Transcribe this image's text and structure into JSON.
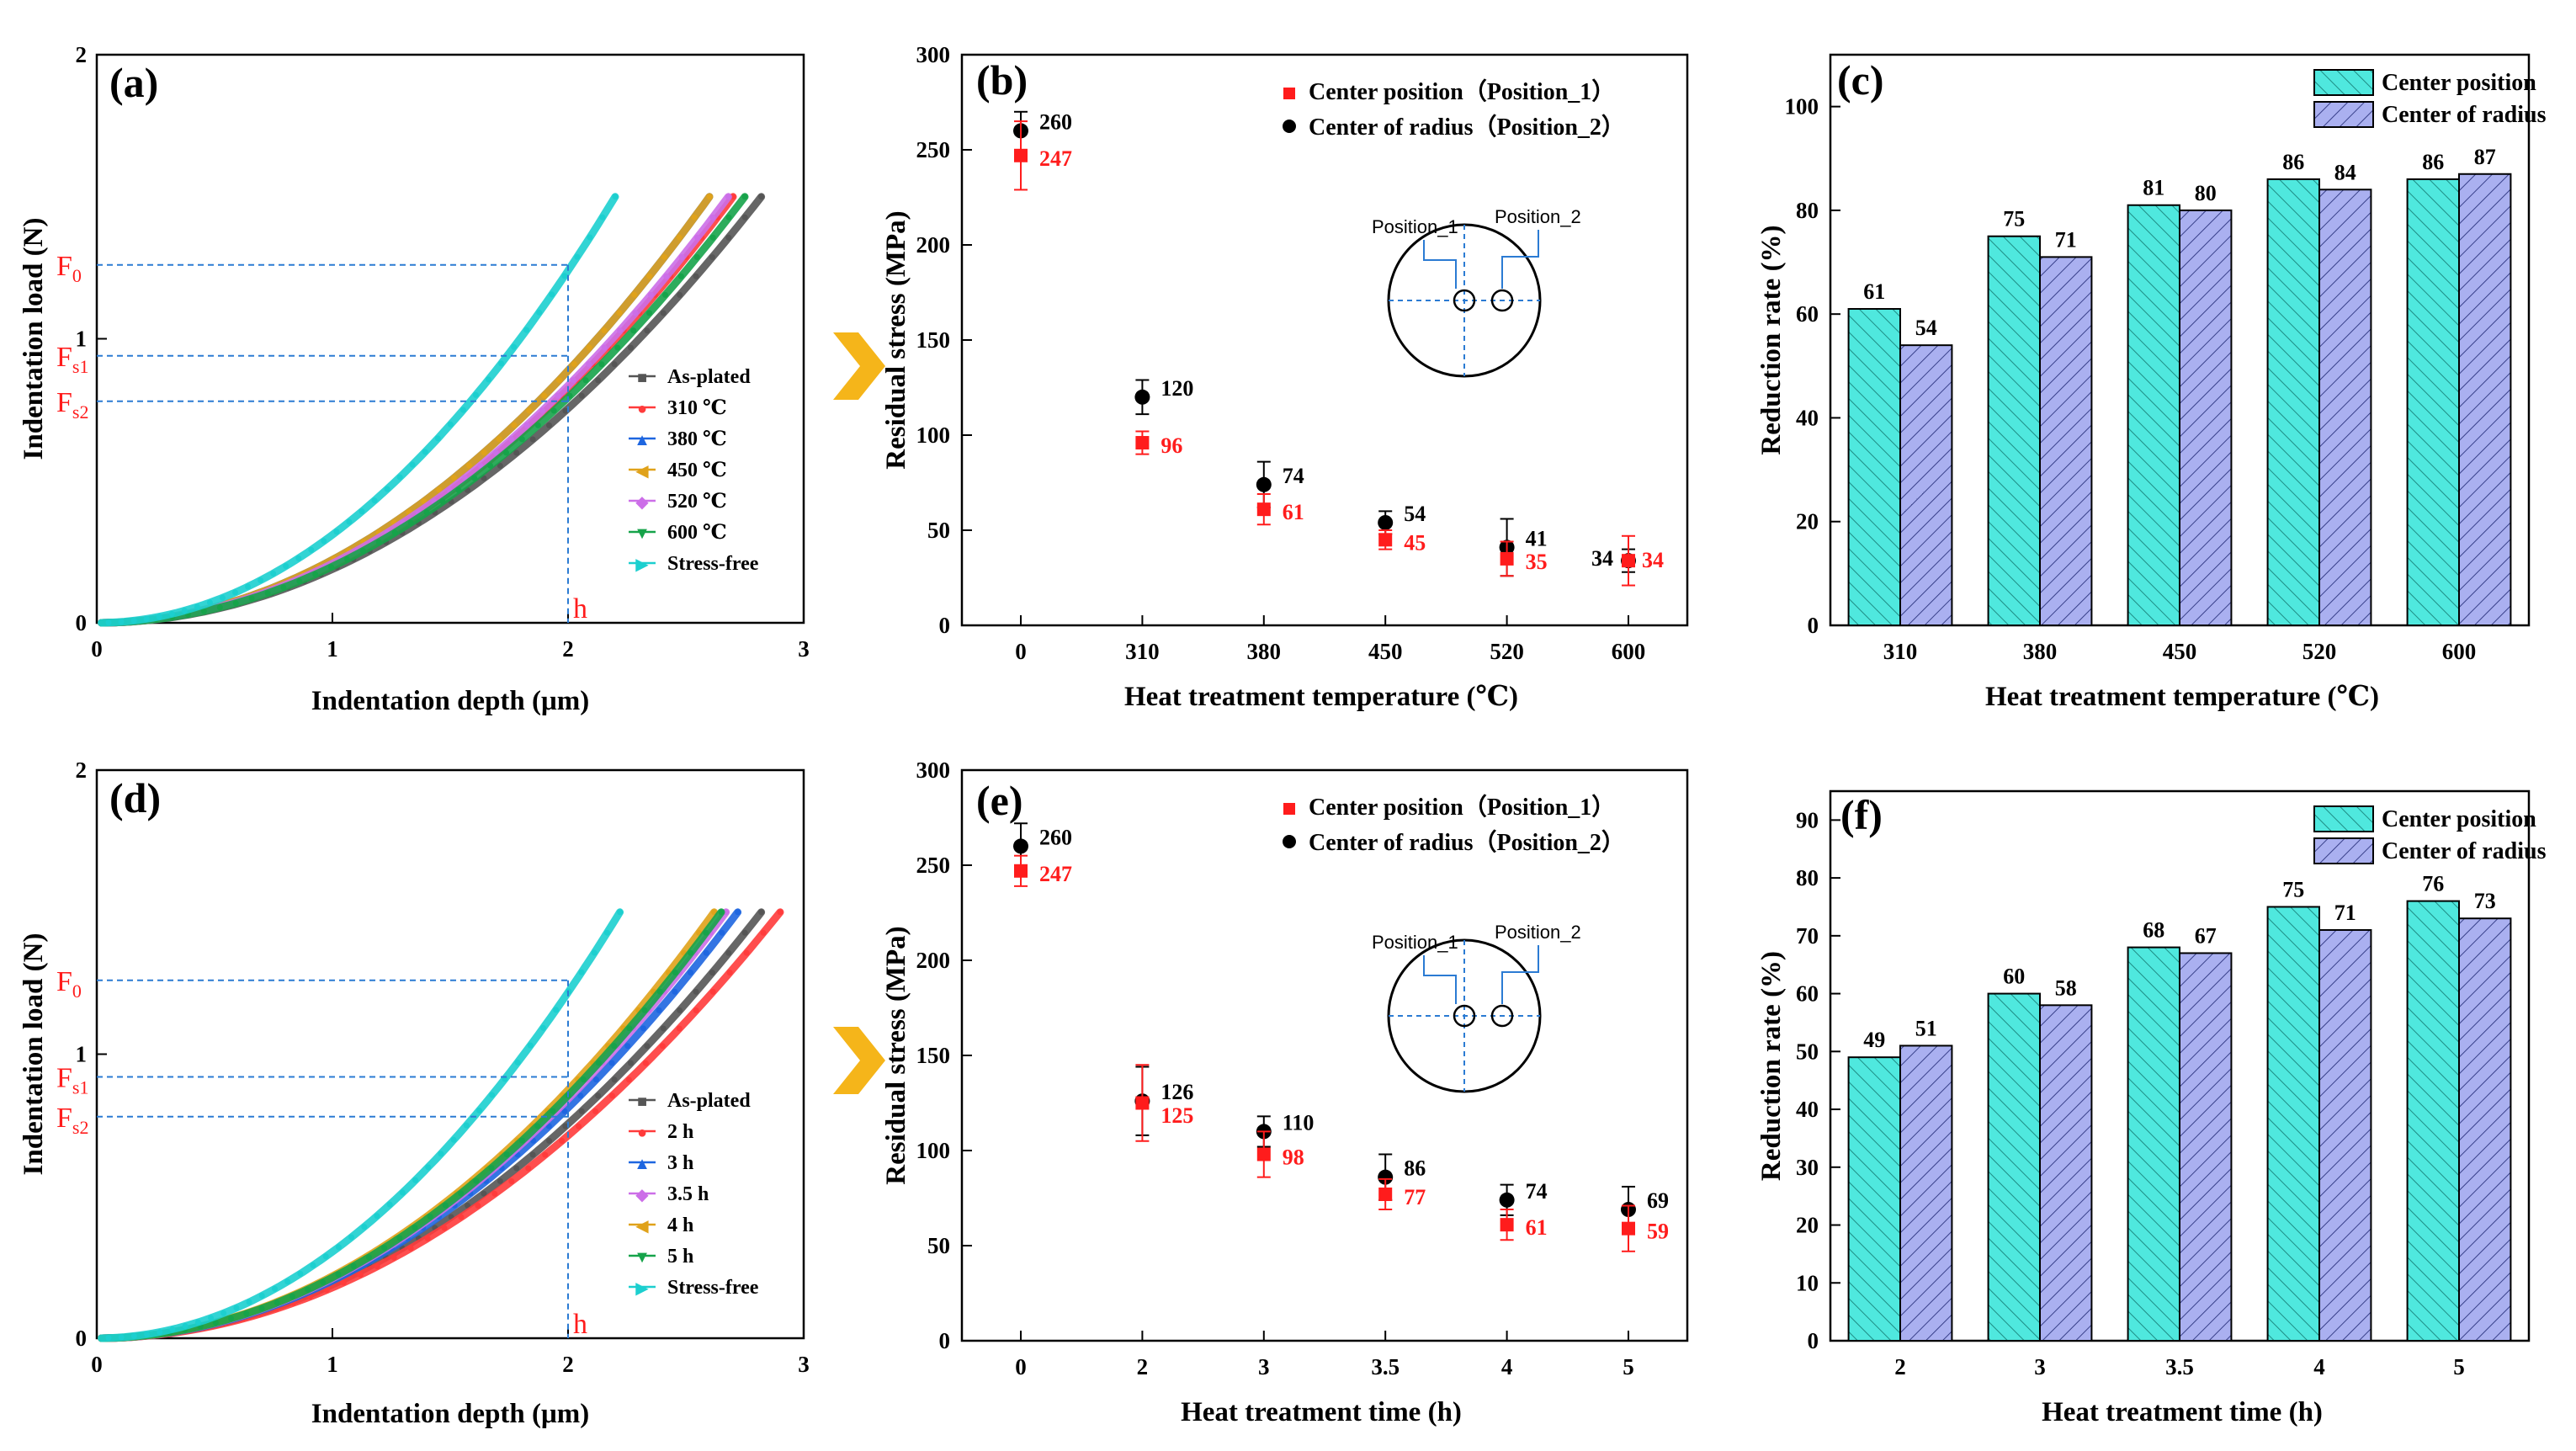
{
  "colors": {
    "as_plated": "#555555",
    "c310": "#ff3b3b",
    "c380": "#1e66e0",
    "c450": "#e0a21a",
    "c520": "#cc6ee8",
    "c600": "#16a34a",
    "stress_free": "#1ccfcf",
    "red": "#ff1c1c",
    "guide": "#2b7bd3",
    "cyan_fill": "#4fe8de",
    "blue_fill": "#aab0f0",
    "arrow": "#f5b51a"
  },
  "icons": {
    "arrow": "chevron-right-icon"
  },
  "chart_data": [
    {
      "panel": "(a)",
      "type": "line",
      "xlabel": "Indentation depth (μm)",
      "ylabel": "Indentation load (N)",
      "xlim": [
        0,
        3
      ],
      "ylim": [
        0,
        2
      ],
      "xticks": [
        "0",
        "1",
        "2",
        "3"
      ],
      "yticks": [
        "0",
        "1",
        "2"
      ],
      "max_load": 1.5,
      "series": [
        {
          "name": "As-plated",
          "marker": "■",
          "color_key": "as_plated",
          "max_depth": 2.82
        },
        {
          "name": "310 ℃",
          "marker": "●",
          "color_key": "c310",
          "max_depth": 2.7
        },
        {
          "name": "380 ℃",
          "marker": "▲",
          "color_key": "c380",
          "max_depth": 2.6
        },
        {
          "name": "450 ℃",
          "marker": "◀",
          "color_key": "c450",
          "max_depth": 2.6
        },
        {
          "name": "520 ℃",
          "marker": "◆",
          "color_key": "c520",
          "max_depth": 2.68
        },
        {
          "name": "600 ℃",
          "marker": "▼",
          "color_key": "c600",
          "max_depth": 2.75
        },
        {
          "name": "Stress-free",
          "marker": "▶",
          "color_key": "stress_free",
          "max_depth": 2.2
        }
      ],
      "annotations": {
        "F0": {
          "main": "F",
          "sub": "0",
          "load": 1.26
        },
        "Fs1": {
          "main": "F",
          "sub": "s1",
          "load": 0.94
        },
        "Fs2": {
          "main": "F",
          "sub": "s2",
          "load": 0.78
        },
        "h": {
          "label": "h",
          "depth": 2.0
        }
      }
    },
    {
      "panel": "(b)",
      "type": "scatter",
      "xlabel": "Heat treatment temperature (℃)",
      "ylabel": "Residual stress (MPa)",
      "ylim": [
        0,
        300
      ],
      "yticks": [
        "0",
        "50",
        "100",
        "150",
        "200",
        "250",
        "300"
      ],
      "categories": [
        "0",
        "310",
        "380",
        "450",
        "520",
        "600"
      ],
      "series": [
        {
          "name": "Center position（Position_1）",
          "marker": "square",
          "color_key": "red",
          "values": [
            247,
            96,
            61,
            45,
            35,
            34
          ],
          "errors": [
            18,
            6,
            8,
            5,
            9,
            13
          ]
        },
        {
          "name": "Center of radius（Position_2）",
          "marker": "circle",
          "color_key": "black",
          "values": [
            260,
            120,
            74,
            54,
            41,
            34
          ],
          "errors": [
            10,
            9,
            12,
            6,
            15,
            6
          ]
        }
      ],
      "inset": {
        "label1": "Position_1",
        "label2": "Position_2"
      }
    },
    {
      "panel": "(c)",
      "type": "bar",
      "xlabel": "Heat treatment temperature (℃)",
      "ylabel": "Reduction rate (%)",
      "ylim": [
        0,
        110
      ],
      "yticks": [
        "0",
        "20",
        "40",
        "60",
        "80",
        "100"
      ],
      "categories": [
        "310",
        "380",
        "450",
        "520",
        "600"
      ],
      "series": [
        {
          "name": "Center position",
          "values": [
            61,
            75,
            81,
            86,
            86
          ]
        },
        {
          "name": "Center of radius",
          "values": [
            54,
            71,
            80,
            84,
            87
          ]
        }
      ]
    },
    {
      "panel": "(d)",
      "type": "line",
      "xlabel": "Indentation depth (μm)",
      "ylabel": "Indentation load (N)",
      "xlim": [
        0,
        3
      ],
      "ylim": [
        0,
        2
      ],
      "xticks": [
        "0",
        "1",
        "2",
        "3"
      ],
      "yticks": [
        "0",
        "1",
        "2"
      ],
      "max_load": 1.5,
      "series": [
        {
          "name": "As-plated",
          "marker": "■",
          "color_key": "as_plated",
          "max_depth": 2.82
        },
        {
          "name": "2 h",
          "marker": "●",
          "color_key": "c310",
          "max_depth": 2.9
        },
        {
          "name": "3 h",
          "marker": "▲",
          "color_key": "c380",
          "max_depth": 2.72
        },
        {
          "name": "3.5 h",
          "marker": "◆",
          "color_key": "c520",
          "max_depth": 2.67
        },
        {
          "name": "4 h",
          "marker": "◀",
          "color_key": "c450",
          "max_depth": 2.62
        },
        {
          "name": "5 h",
          "marker": "▼",
          "color_key": "c600",
          "max_depth": 2.65
        },
        {
          "name": "Stress-free",
          "marker": "▶",
          "color_key": "stress_free",
          "max_depth": 2.22
        }
      ],
      "annotations": {
        "F0": {
          "main": "F",
          "sub": "0",
          "load": 1.26
        },
        "Fs1": {
          "main": "F",
          "sub": "s1",
          "load": 0.92
        },
        "Fs2": {
          "main": "F",
          "sub": "s2",
          "load": 0.78
        },
        "h": {
          "label": "h",
          "depth": 2.0
        }
      }
    },
    {
      "panel": "(e)",
      "type": "scatter",
      "xlabel": "Heat treatment time (h)",
      "ylabel": "Residual stress (MPa)",
      "ylim": [
        0,
        300
      ],
      "yticks": [
        "0",
        "50",
        "100",
        "150",
        "200",
        "250",
        "300"
      ],
      "categories": [
        "0",
        "2",
        "3",
        "3.5",
        "4",
        "5"
      ],
      "series": [
        {
          "name": "Center position（Position_1）",
          "marker": "square",
          "color_key": "red",
          "values": [
            247,
            125,
            98,
            77,
            61,
            59
          ],
          "errors": [
            8,
            20,
            12,
            8,
            8,
            12
          ]
        },
        {
          "name": "Center of radius（Position_2）",
          "marker": "circle",
          "color_key": "black",
          "values": [
            260,
            126,
            110,
            86,
            74,
            69
          ],
          "errors": [
            12,
            18,
            8,
            12,
            8,
            12
          ]
        }
      ],
      "inset": {
        "label1": "Position_1",
        "label2": "Position_2"
      }
    },
    {
      "panel": "(f)",
      "type": "bar",
      "xlabel": "Heat treatment time (h)",
      "ylabel": "Reduction rate (%)",
      "ylim": [
        0,
        95
      ],
      "yticks": [
        "0",
        "10",
        "20",
        "30",
        "40",
        "50",
        "60",
        "70",
        "80",
        "90"
      ],
      "categories": [
        "2",
        "3",
        "3.5",
        "4",
        "5"
      ],
      "series": [
        {
          "name": "Center position",
          "values": [
            49,
            60,
            68,
            75,
            76
          ]
        },
        {
          "name": "Center of radius",
          "values": [
            51,
            58,
            67,
            71,
            73
          ]
        }
      ]
    }
  ]
}
